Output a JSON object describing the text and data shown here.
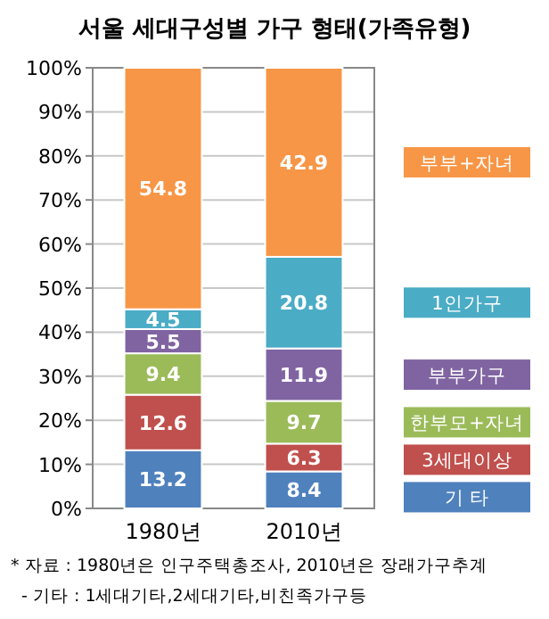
{
  "chart_data": {
    "type": "bar",
    "stacked": true,
    "title": "서울 세대구성별 가구 형태(가족유형)",
    "categories": [
      "1980년",
      "2010년"
    ],
    "series": [
      {
        "name": "기 타",
        "color": "#4f81bd",
        "values": [
          13.2,
          8.4
        ]
      },
      {
        "name": "3세대이상",
        "color": "#c0504d",
        "values": [
          12.6,
          6.3
        ]
      },
      {
        "name": "한부모+자녀",
        "color": "#9bbb59",
        "values": [
          9.4,
          9.7
        ]
      },
      {
        "name": "부부가구",
        "color": "#8064a2",
        "values": [
          5.5,
          11.9
        ]
      },
      {
        "name": "1인가구",
        "color": "#4bacc6",
        "values": [
          4.5,
          20.8
        ]
      },
      {
        "name": "부부+자녀",
        "color": "#f79646",
        "values": [
          54.8,
          42.9
        ]
      }
    ],
    "ylim": [
      0,
      100
    ],
    "yticks": [
      {
        "value": 0,
        "label": "0%"
      },
      {
        "value": 10,
        "label": "10%"
      },
      {
        "value": 20,
        "label": "20%"
      },
      {
        "value": 30,
        "label": "30%"
      },
      {
        "value": 40,
        "label": "40%"
      },
      {
        "value": 50,
        "label": "50%"
      },
      {
        "value": 60,
        "label": "60%"
      },
      {
        "value": 70,
        "label": "70%"
      },
      {
        "value": 80,
        "label": "80%"
      },
      {
        "value": 90,
        "label": "90%"
      },
      {
        "value": 100,
        "label": "100%"
      }
    ],
    "grid": "y",
    "data_labels": true,
    "legend": "right",
    "annotations": [
      "* 자료 : 1980년은 인구주택총조사, 2010년은 장래가구추계",
      "- 기타 : 1세대기타,2세대기타,비친족가구등"
    ]
  }
}
